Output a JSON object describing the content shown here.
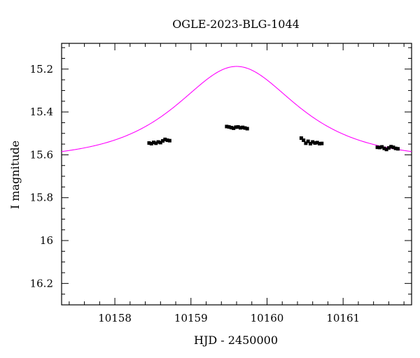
{
  "chart_data": {
    "type": "scatter",
    "title": "OGLE-2023-BLG-1044",
    "xlabel": "HJD - 2450000",
    "ylabel": "I magnitude",
    "xlim": [
      10157.3,
      10161.9
    ],
    "ylim": [
      16.3,
      15.08
    ],
    "y_inverted": true,
    "x_ticks": [
      10158,
      10159,
      10160,
      10161
    ],
    "x_tick_labels": [
      "10158",
      "10159",
      "10160",
      "10161"
    ],
    "y_ticks": [
      15.2,
      15.4,
      15.6,
      15.8,
      16.0,
      16.2
    ],
    "y_tick_labels": [
      "15.2",
      "15.4",
      "15.6",
      "15.8",
      "16",
      "16.2"
    ],
    "x_minor_step": 0.2,
    "y_minor_step": 0.05,
    "grid": false,
    "colors": {
      "model": "#ff00ff",
      "points": "#000000",
      "axes": "#000000"
    },
    "model": {
      "name": "",
      "t0": 10159.6,
      "u0": 0.83,
      "tE": 1.05,
      "baseline_mag": 15.625
    },
    "series": [
      {
        "name": "",
        "x": [
          10158.45,
          10158.48,
          10158.51,
          10158.54,
          10158.57,
          10158.6,
          10158.63,
          10158.66,
          10158.69,
          10158.72,
          10159.47,
          10159.5,
          10159.53,
          10159.56,
          10159.59,
          10159.62,
          10159.65,
          10159.68,
          10159.71,
          10159.74,
          10160.45,
          10160.48,
          10160.51,
          10160.54,
          10160.57,
          10160.6,
          10160.63,
          10160.66,
          10160.69,
          10160.72,
          10161.45,
          10161.48,
          10161.51,
          10161.54,
          10161.57,
          10161.6,
          10161.63,
          10161.66,
          10161.69,
          10161.72
        ],
        "y": [
          15.545,
          15.548,
          15.542,
          15.546,
          15.54,
          15.543,
          15.535,
          15.528,
          15.532,
          15.534,
          15.468,
          15.47,
          15.473,
          15.476,
          15.471,
          15.47,
          15.474,
          15.472,
          15.475,
          15.478,
          15.522,
          15.532,
          15.546,
          15.537,
          15.548,
          15.54,
          15.545,
          15.543,
          15.548,
          15.547,
          15.565,
          15.566,
          15.563,
          15.57,
          15.575,
          15.568,
          15.562,
          15.565,
          15.57,
          15.572
        ],
        "yerr": 0.006
      }
    ]
  }
}
